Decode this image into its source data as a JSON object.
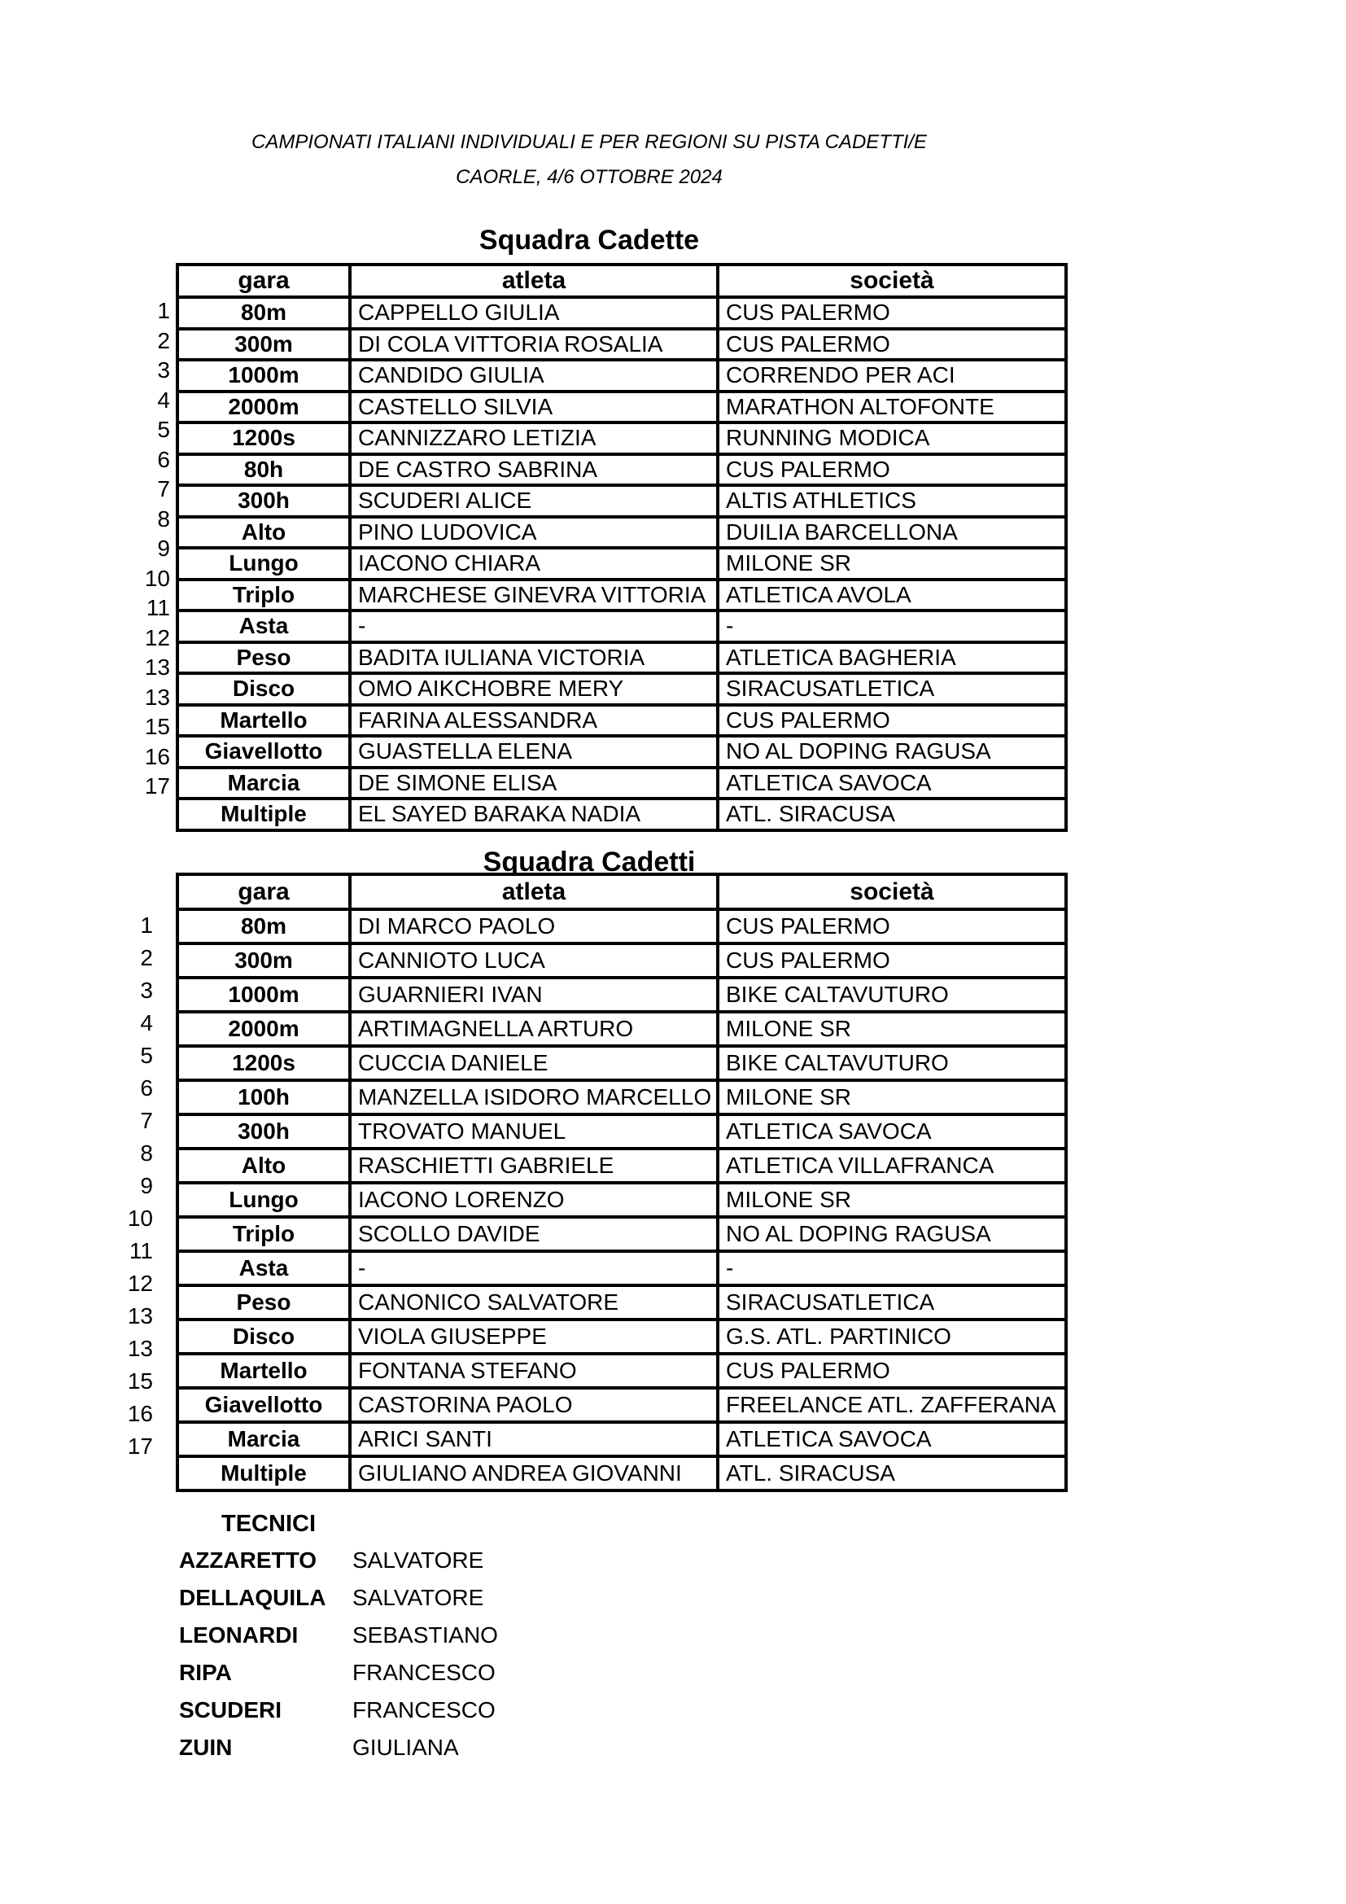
{
  "page": {
    "background": "#ffffff",
    "text_color": "#000000",
    "table_border_color": "#000000"
  },
  "header": {
    "title_line1": "CAMPIONATI ITALIANI INDIVIDUALI E PER REGIONI SU PISTA CADETTI/E",
    "title_line2": "CAORLE, 4/6 OTTOBRE 2024"
  },
  "tables": [
    {
      "title": "Squadra Cadette",
      "headers": [
        "gara",
        "atleta",
        "società"
      ],
      "rows": [
        {
          "num": "1",
          "gara": "80m",
          "atleta": "CAPPELLO GIULIA",
          "societa": "CUS PALERMO"
        },
        {
          "num": "2",
          "gara": "300m",
          "atleta": "DI COLA VITTORIA ROSALIA",
          "societa": "CUS PALERMO"
        },
        {
          "num": "3",
          "gara": "1000m",
          "atleta": "CANDIDO GIULIA",
          "societa": "CORRENDO PER ACI"
        },
        {
          "num": "4",
          "gara": "2000m",
          "atleta": "CASTELLO SILVIA",
          "societa": "MARATHON ALTOFONTE"
        },
        {
          "num": "5",
          "gara": "1200s",
          "atleta": "CANNIZZARO LETIZIA",
          "societa": "RUNNING MODICA"
        },
        {
          "num": "6",
          "gara": "80h",
          "atleta": "DE CASTRO SABRINA",
          "societa": "CUS PALERMO"
        },
        {
          "num": "7",
          "gara": "300h",
          "atleta": "SCUDERI ALICE",
          "societa": "ALTIS ATHLETICS"
        },
        {
          "num": "8",
          "gara": "Alto",
          "atleta": "PINO LUDOVICA",
          "societa": "DUILIA BARCELLONA"
        },
        {
          "num": "9",
          "gara": "Lungo",
          "atleta": "IACONO CHIARA",
          "societa": "MILONE SR"
        },
        {
          "num": "10",
          "gara": "Triplo",
          "atleta": "MARCHESE GINEVRA VITTORIA",
          "societa": "ATLETICA AVOLA"
        },
        {
          "num": "11",
          "gara": "Asta",
          "atleta": "-",
          "societa": "-"
        },
        {
          "num": "12",
          "gara": "Peso",
          "atleta": "BADITA IULIANA VICTORIA",
          "societa": "ATLETICA BAGHERIA"
        },
        {
          "num": "13",
          "gara": "Disco",
          "atleta": "OMO AIKCHOBRE MERY",
          "societa": "SIRACUSATLETICA"
        },
        {
          "num": "13",
          "gara": "Martello",
          "atleta": "FARINA ALESSANDRA",
          "societa": "CUS PALERMO"
        },
        {
          "num": "15",
          "gara": "Giavellotto",
          "atleta": "GUASTELLA ELENA",
          "societa": "NO AL DOPING RAGUSA"
        },
        {
          "num": "16",
          "gara": "Marcia",
          "atleta": "DE SIMONE ELISA",
          "societa": "ATLETICA SAVOCA"
        },
        {
          "num": "17",
          "gara": "Multiple",
          "atleta": "EL SAYED BARAKA NADIA",
          "societa": "ATL. SIRACUSA"
        }
      ]
    },
    {
      "title": "Squadra Cadetti",
      "headers": [
        "gara",
        "atleta",
        "società"
      ],
      "rows": [
        {
          "num": "1",
          "gara": "80m",
          "atleta": "DI MARCO PAOLO",
          "societa": "CUS PALERMO"
        },
        {
          "num": "2",
          "gara": "300m",
          "atleta": "CANNIOTO LUCA",
          "societa": "CUS PALERMO"
        },
        {
          "num": "3",
          "gara": "1000m",
          "atleta": "GUARNIERI IVAN",
          "societa": "BIKE CALTAVUTURO"
        },
        {
          "num": "4",
          "gara": "2000m",
          "atleta": "ARTIMAGNELLA ARTURO",
          "societa": "MILONE SR"
        },
        {
          "num": "5",
          "gara": "1200s",
          "atleta": "CUCCIA DANIELE",
          "societa": "BIKE CALTAVUTURO"
        },
        {
          "num": "6",
          "gara": "100h",
          "atleta": "MANZELLA ISIDORO MARCELLO",
          "societa": "MILONE SR"
        },
        {
          "num": "7",
          "gara": "300h",
          "atleta": "TROVATO MANUEL",
          "societa": "ATLETICA SAVOCA"
        },
        {
          "num": "8",
          "gara": "Alto",
          "atleta": "RASCHIETTI GABRIELE",
          "societa": "ATLETICA VILLAFRANCA"
        },
        {
          "num": "9",
          "gara": "Lungo",
          "atleta": "IACONO LORENZO",
          "societa": "MILONE SR"
        },
        {
          "num": "10",
          "gara": "Triplo",
          "atleta": "SCOLLO DAVIDE",
          "societa": "NO AL DOPING RAGUSA"
        },
        {
          "num": "11",
          "gara": "Asta",
          "atleta": "-",
          "societa": "-"
        },
        {
          "num": "12",
          "gara": "Peso",
          "atleta": "CANONICO SALVATORE",
          "societa": "SIRACUSATLETICA"
        },
        {
          "num": "13",
          "gara": "Disco",
          "atleta": "VIOLA GIUSEPPE",
          "societa": "G.S. ATL. PARTINICO"
        },
        {
          "num": "13",
          "gara": "Martello",
          "atleta": "FONTANA STEFANO",
          "societa": "CUS PALERMO"
        },
        {
          "num": "15",
          "gara": "Giavellotto",
          "atleta": "CASTORINA PAOLO",
          "societa": "FREELANCE ATL. ZAFFERANA"
        },
        {
          "num": "16",
          "gara": "Marcia",
          "atleta": "ARICI SANTI",
          "societa": "ATLETICA SAVOCA"
        },
        {
          "num": "17",
          "gara": "Multiple",
          "atleta": "GIULIANO ANDREA GIOVANNI",
          "societa": "ATL. SIRACUSA"
        }
      ]
    }
  ],
  "tecnici": {
    "title": "TECNICI",
    "rows": [
      {
        "surname": "AZZARETTO",
        "firstname": "SALVATORE"
      },
      {
        "surname": "DELLAQUILA",
        "firstname": "SALVATORE"
      },
      {
        "surname": "LEONARDI",
        "firstname": "SEBASTIANO"
      },
      {
        "surname": "RIPA",
        "firstname": "FRANCESCO"
      },
      {
        "surname": "SCUDERI",
        "firstname": "FRANCESCO"
      },
      {
        "surname": "ZUIN",
        "firstname": "GIULIANA"
      }
    ]
  }
}
